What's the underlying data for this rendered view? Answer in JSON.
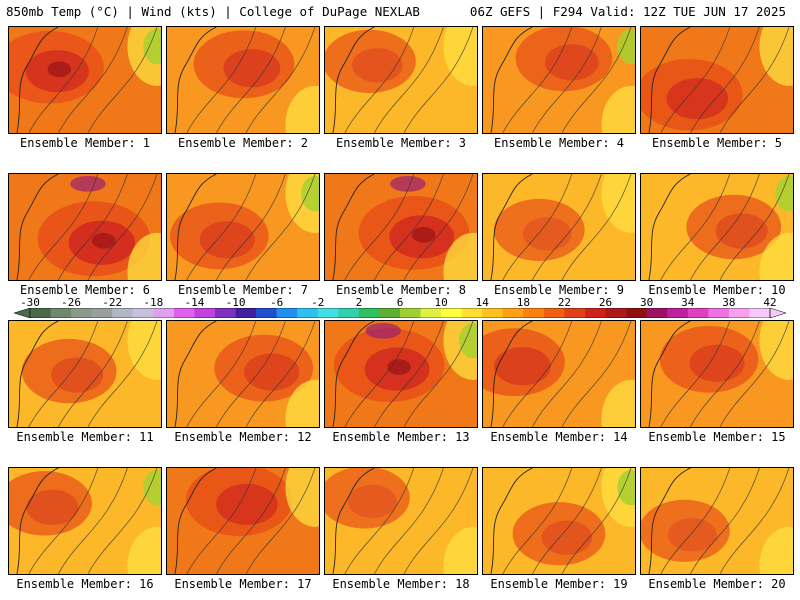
{
  "header": {
    "left_title": "850mb Temp (°C) | Wind (kts) | College of DuPage NEXLAB",
    "right_title": "06Z GEFS | F294 Valid: 12Z TUE JUN 17 2025"
  },
  "members": [
    {
      "label": "Ensemble Member: 1",
      "intensity": 0.75
    },
    {
      "label": "Ensemble Member: 2",
      "intensity": 0.55
    },
    {
      "label": "Ensemble Member: 3",
      "intensity": 0.35
    },
    {
      "label": "Ensemble Member: 4",
      "intensity": 0.45
    },
    {
      "label": "Ensemble Member: 5",
      "intensity": 0.7
    },
    {
      "label": "Ensemble Member: 6",
      "intensity": 0.85
    },
    {
      "label": "Ensemble Member: 7",
      "intensity": 0.5
    },
    {
      "label": "Ensemble Member: 8",
      "intensity": 0.8
    },
    {
      "label": "Ensemble Member: 9",
      "intensity": 0.3
    },
    {
      "label": "Ensemble Member: 10",
      "intensity": 0.4
    },
    {
      "label": "Ensemble Member: 11",
      "intensity": 0.4
    },
    {
      "label": "Ensemble Member: 12",
      "intensity": 0.5
    },
    {
      "label": "Ensemble Member: 13",
      "intensity": 0.8
    },
    {
      "label": "Ensemble Member: 14",
      "intensity": 0.55
    },
    {
      "label": "Ensemble Member: 15",
      "intensity": 0.5
    },
    {
      "label": "Ensemble Member: 16",
      "intensity": 0.4
    },
    {
      "label": "Ensemble Member: 17",
      "intensity": 0.7
    },
    {
      "label": "Ensemble Member: 18",
      "intensity": 0.3
    },
    {
      "label": "Ensemble Member: 19",
      "intensity": 0.35
    },
    {
      "label": "Ensemble Member: 20",
      "intensity": 0.3
    }
  ],
  "colorbar": {
    "ticks": [
      "-30",
      "-26",
      "-22",
      "-18",
      "-14",
      "-10",
      "-6",
      "-2",
      "2",
      "6",
      "10",
      "14",
      "18",
      "22",
      "26",
      "30",
      "34",
      "38",
      "42"
    ],
    "colors": [
      "#4a6b4a",
      "#6e8a6e",
      "#8a9a8a",
      "#9aa0a0",
      "#b0b8c8",
      "#c8c0e0",
      "#e0a0f0",
      "#e060f0",
      "#c040e0",
      "#8030c0",
      "#4020a0",
      "#2050d0",
      "#2090f0",
      "#30c0f0",
      "#40e0e0",
      "#30d0b0",
      "#30c060",
      "#60b030",
      "#a0d030",
      "#e0f040",
      "#ffff40",
      "#ffe030",
      "#ffc020",
      "#ffa018",
      "#ff8010",
      "#f06010",
      "#e04018",
      "#d02020",
      "#b01818",
      "#901010",
      "#a01060",
      "#c020a0",
      "#e040c0",
      "#f070e0",
      "#f8a0f0",
      "#f8c8f8"
    ]
  }
}
